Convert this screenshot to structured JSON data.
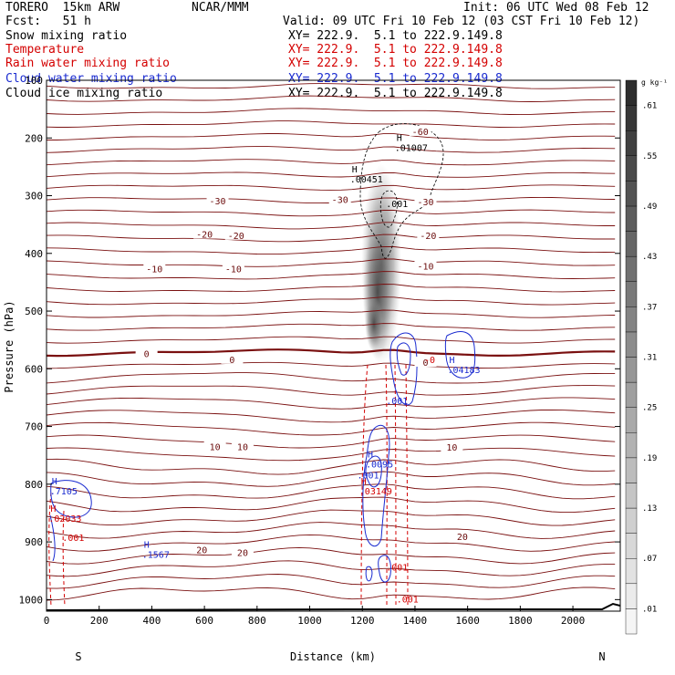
{
  "header": {
    "title_left": "TORERO  15km ARW",
    "title_center": "NCAR/MMM",
    "init": "Init: 06 UTC Wed 08 Feb 12",
    "fcst": "Fcst:   51 h",
    "valid": "Valid: 09 UTC Fri 10 Feb 12 (03 CST Fri 10 Feb 12)"
  },
  "legend": [
    {
      "name": "Snow mixing ratio",
      "xy": "XY= 222.9.  5.1 to 222.9.149.8",
      "color": "#000000"
    },
    {
      "name": "Temperature",
      "xy": "XY= 222.9.  5.1 to 222.9.149.8",
      "color": "#d40000"
    },
    {
      "name": "Rain water mixing ratio",
      "xy": "XY= 222.9.  5.1 to 222.9.149.8",
      "color": "#d40000"
    },
    {
      "name": "Cloud water mixing ratio",
      "xy": "XY= 222.9.  5.1 to 222.9.149.8",
      "color": "#1a2bd0"
    },
    {
      "name": "Cloud ice mixing ratio",
      "xy": "XY= 222.9.  5.1 to 222.9.149.8",
      "color": "#000000"
    }
  ],
  "chart_data": {
    "type": "contour",
    "xlabel": "Distance (km)",
    "ylabel": "Pressure (hPa)",
    "xlim": [
      0,
      2180
    ],
    "ylim": [
      1020,
      100
    ],
    "x_ticks": [
      0,
      200,
      400,
      600,
      800,
      1000,
      1200,
      1400,
      1600,
      1800,
      2000
    ],
    "y_ticks": [
      100,
      200,
      300,
      400,
      500,
      600,
      700,
      800,
      900,
      1000
    ],
    "end_labels": {
      "left": "S",
      "right": "N"
    },
    "colorbar": {
      "unit": "g kg⁻¹",
      "labels": [
        ".01",
        ".07",
        ".13",
        ".19",
        ".25",
        ".31",
        ".37",
        ".43",
        ".49",
        ".55",
        ".61"
      ]
    },
    "temperature_labels": [
      {
        "label": "-60",
        "x": 1420,
        "p": 190
      },
      {
        "label": "-30",
        "x": 650,
        "p": 310
      },
      {
        "label": "-30",
        "x": 1115,
        "p": 308
      },
      {
        "label": "-30",
        "x": 1440,
        "p": 312
      },
      {
        "label": "-20",
        "x": 600,
        "p": 368
      },
      {
        "label": "-20",
        "x": 720,
        "p": 370
      },
      {
        "label": "-20",
        "x": 1450,
        "p": 370
      },
      {
        "label": "-10",
        "x": 410,
        "p": 428
      },
      {
        "label": "-10",
        "x": 710,
        "p": 428
      },
      {
        "label": "-10",
        "x": 1440,
        "p": 423
      },
      {
        "label": "0",
        "x": 380,
        "p": 575
      },
      {
        "label": "0",
        "x": 705,
        "p": 585
      },
      {
        "label": "0",
        "x": 1440,
        "p": 590
      },
      {
        "label": "10",
        "x": 640,
        "p": 736
      },
      {
        "label": "10",
        "x": 745,
        "p": 736
      },
      {
        "label": "10",
        "x": 1540,
        "p": 737
      },
      {
        "label": "20",
        "x": 590,
        "p": 915
      },
      {
        "label": "20",
        "x": 745,
        "p": 920
      },
      {
        "label": "20",
        "x": 1580,
        "p": 892
      }
    ],
    "extrema_labels": [
      {
        "label": "H",
        "value": ".01007",
        "x": 1330,
        "p": 205,
        "color": "#000000"
      },
      {
        "label": "H",
        "value": ".00451",
        "x": 1160,
        "p": 260,
        "color": "#000000"
      },
      {
        "label": "H",
        "value": ".0095",
        "x": 1220,
        "p": 754,
        "color": "#1a2bd0"
      },
      {
        "label": "H",
        "value": ".04183",
        "x": 1530,
        "p": 590,
        "color": "#1a2bd0"
      },
      {
        "label": "H",
        "value": ".7105",
        "x": 20,
        "p": 800,
        "color": "#1a2bd0"
      },
      {
        "label": "H",
        "value": ".02033",
        "x": 15,
        "p": 848,
        "color": "#d40000"
      },
      {
        "label": "H",
        "value": ".1567",
        "x": 370,
        "p": 910,
        "color": "#1a2bd0"
      },
      {
        "label": "H",
        "value": ".03149",
        "x": 1195,
        "p": 800,
        "color": "#d40000"
      }
    ],
    "small_labels": [
      {
        "label": ".001",
        "x": 1290,
        "p": 320,
        "color": "#000000"
      },
      {
        "label": ".001",
        "x": 1290,
        "p": 661,
        "color": "#1a2bd0"
      },
      {
        "label": ".001",
        "x": 1180,
        "p": 790,
        "color": "#1a2bd0"
      },
      {
        "label": ".001",
        "x": 60,
        "p": 898,
        "color": "#d40000"
      },
      {
        "label": ".001",
        "x": 1290,
        "p": 950,
        "color": "#d40000"
      },
      {
        "label": ".001",
        "x": 1330,
        "p": 1005,
        "color": "#d40000"
      },
      {
        "label": "-0",
        "x": 1435,
        "p": 590,
        "color": "#d40000"
      }
    ]
  }
}
